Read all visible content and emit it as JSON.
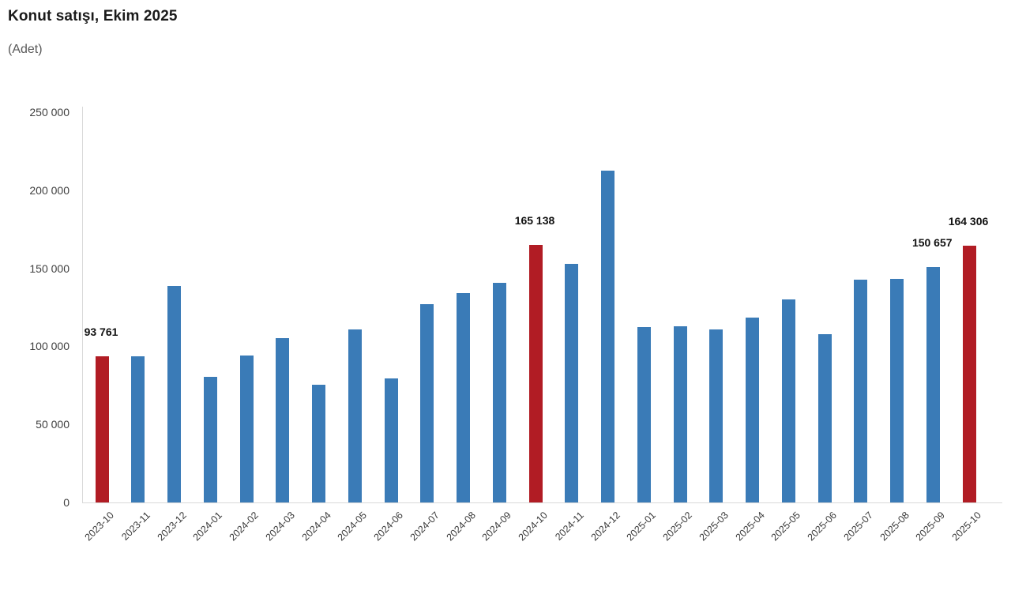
{
  "title": "Konut satışı, Ekim 2025",
  "subtitle": "(Adet)",
  "colors": {
    "bar_blue": "#3a7bb7",
    "bar_red": "#b11c24",
    "axis_line": "#d9d9d9",
    "title_text": "#1a1a1a",
    "subtitle_text": "#595959",
    "tick_text": "#404040",
    "data_label_text": "#111111"
  },
  "chart_data": {
    "type": "bar",
    "title": "Konut satışı, Ekim 2025",
    "ylabel": "(Adet)",
    "xlabel": "",
    "ylim": [
      0,
      250000
    ],
    "ytick_step": 50000,
    "ytick_values": [
      0,
      50000,
      100000,
      150000,
      200000,
      250000
    ],
    "ytick_labels": [
      "0",
      "50 000",
      "100 000",
      "150 000",
      "200 000",
      "250 000"
    ],
    "grid": false,
    "legend_position": "none",
    "categories": [
      "2023-10",
      "2023-11",
      "2023-12",
      "2024-01",
      "2024-02",
      "2024-03",
      "2024-04",
      "2024-05",
      "2024-06",
      "2024-07",
      "2024-08",
      "2024-09",
      "2024-10",
      "2024-11",
      "2024-12",
      "2025-01",
      "2025-02",
      "2025-03",
      "2025-04",
      "2025-05",
      "2025-06",
      "2025-07",
      "2025-08",
      "2025-09",
      "2025-10"
    ],
    "values": [
      93761,
      93514,
      138577,
      80308,
      93902,
      105476,
      75569,
      110588,
      79313,
      127088,
      134155,
      140919,
      165138,
      153014,
      212637,
      112173,
      112818,
      110795,
      118359,
      130025,
      107723,
      142858,
      143319,
      150657,
      164306
    ],
    "highlighted_indices": [
      0,
      12,
      24
    ],
    "data_labels": [
      {
        "index": 0,
        "text": "93 761"
      },
      {
        "index": 12,
        "text": "165 138"
      },
      {
        "index": 23,
        "text": "150 657"
      },
      {
        "index": 24,
        "text": "164 306"
      }
    ]
  }
}
